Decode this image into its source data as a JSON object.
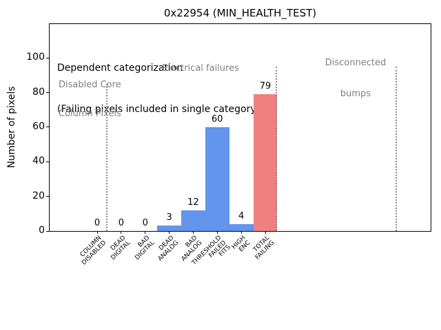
{
  "title": "0x22954 (MIN_HEALTH_TEST)",
  "colors": {
    "bar_blue": "#6495ED",
    "bar_red": "#F08080",
    "annotation_gray": "#808080",
    "separator_gray": "#8a8a8a",
    "axis_black": "#000000"
  },
  "chart_data": {
    "type": "bar",
    "title": "0x22954 (MIN_HEALTH_TEST)",
    "xlabel": "",
    "ylabel": "Number of pixels",
    "categories": [
      "COLUMN\nDISABLED",
      "DEAD\nDIGITAL",
      "BAD\nDIGITAL",
      "DEAD\nANALOG",
      "BAD\nANALOG",
      "THRESHOLD\nFAILED\nFITS",
      "HIGH\nENC",
      "TOTAL\nFAILING"
    ],
    "values": [
      0,
      0,
      0,
      3,
      12,
      60,
      4,
      79
    ],
    "bar_colors": [
      "#6495ED",
      "#6495ED",
      "#6495ED",
      "#6495ED",
      "#6495ED",
      "#6495ED",
      "#6495ED",
      "#F08080"
    ],
    "value_labels": [
      "0",
      "0",
      "0",
      "3",
      "12",
      "60",
      "4",
      "79"
    ],
    "yticks": [
      0,
      20,
      40,
      60,
      80,
      100
    ],
    "ylim": [
      0,
      119.6
    ],
    "grid": false,
    "legend_position": "none",
    "separators": [
      {
        "x_category": 0.41,
        "y_top": 85
      },
      {
        "x_category": 7.45,
        "y_top": 95
      },
      {
        "x_category": 12.45,
        "y_top": 95
      }
    ],
    "annotations": {
      "dependent": [
        "Dependent categorization",
        "(Failing pixels included in single category)"
      ],
      "disabled_core": [
        "Disabled Core",
        "Column Pixels"
      ],
      "electrical": "Electrical failures",
      "disconnected": [
        "Disconnected",
        "bumps"
      ]
    }
  }
}
